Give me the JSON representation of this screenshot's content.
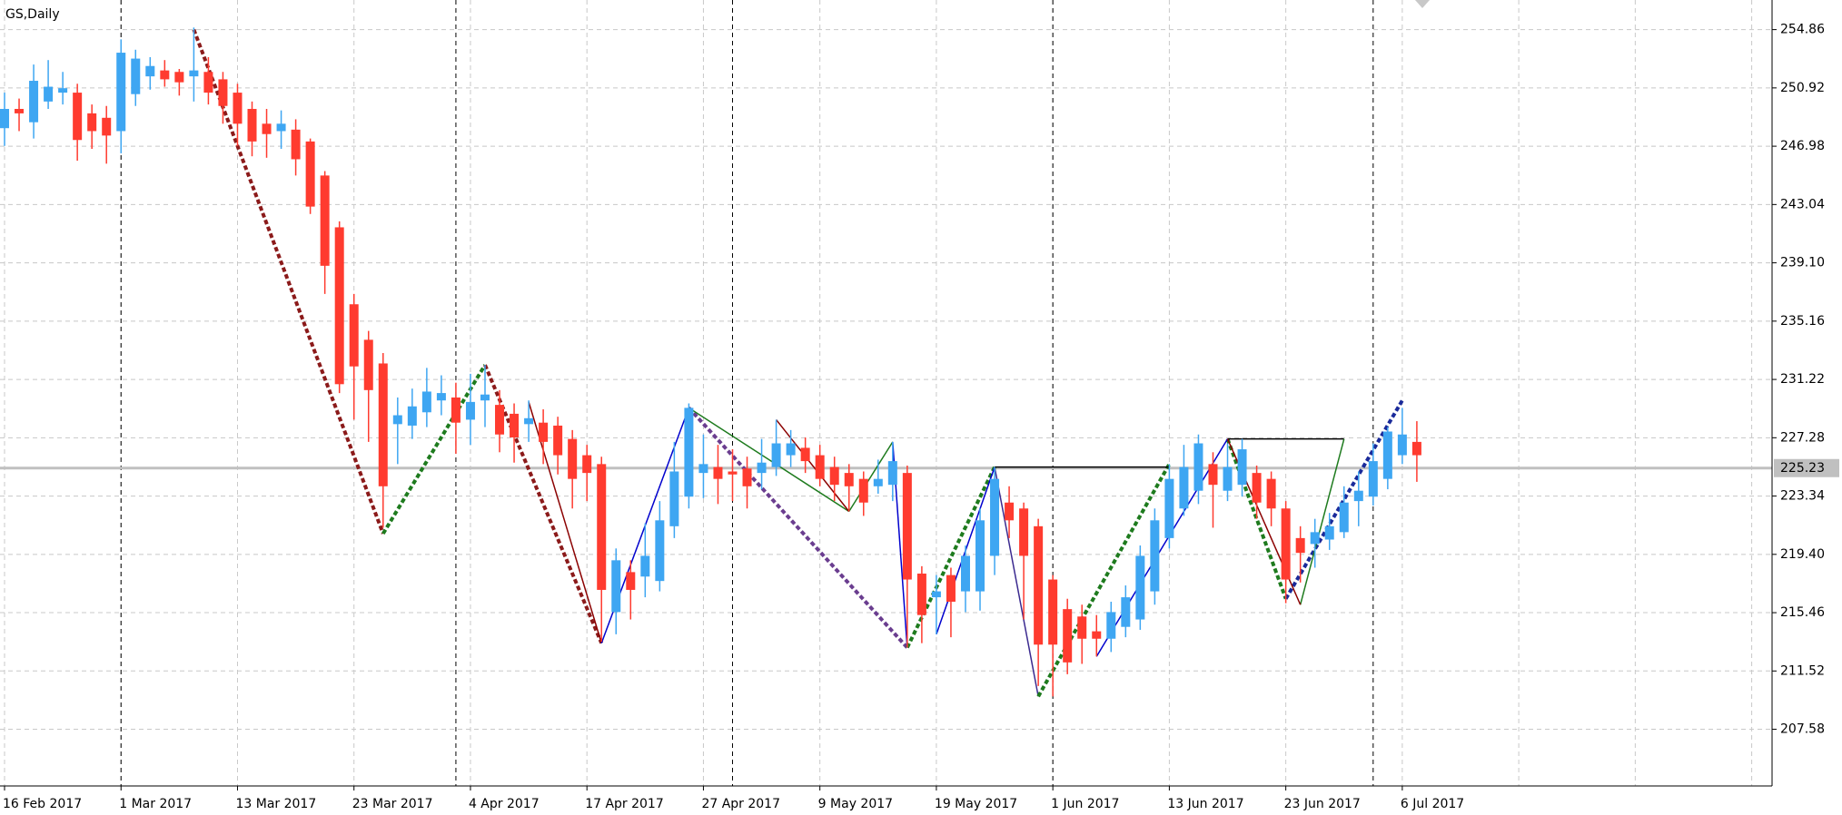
{
  "chart_data": {
    "type": "candlestick",
    "title": "GS,Daily",
    "categories": [
      "16 Feb 2017",
      null,
      null,
      null,
      null,
      null,
      null,
      null,
      "1 Mar 2017",
      null,
      null,
      null,
      null,
      null,
      null,
      null,
      "13 Mar 2017",
      null,
      null,
      null,
      null,
      null,
      null,
      null,
      "23 Mar 2017",
      null,
      null,
      null,
      null,
      null,
      null,
      null,
      "4 Apr 2017",
      null,
      null,
      null,
      null,
      null,
      null,
      null,
      "17 Apr 2017",
      null,
      null,
      null,
      null,
      null,
      null,
      null,
      "27 Apr 2017",
      null,
      null,
      null,
      null,
      null,
      null,
      null,
      "9 May 2017",
      null,
      null,
      null,
      null,
      null,
      null,
      null,
      "19 May 2017",
      null,
      null,
      null,
      null,
      null,
      null,
      null,
      "1 Jun 2017",
      null,
      null,
      null,
      null,
      null,
      null,
      null,
      "13 Jun 2017",
      null,
      null,
      null,
      null,
      null,
      null,
      null,
      "23 Jun 2017",
      null,
      null,
      null,
      null,
      null,
      null,
      null,
      "6 Jul 2017",
      null
    ],
    "open": [
      248.2,
      249.5,
      248.6,
      250.0,
      250.6,
      250.6,
      249.2,
      248.9,
      248.0,
      250.5,
      251.7,
      252.1,
      252.0,
      251.7,
      252.0,
      251.5,
      250.6,
      249.5,
      248.5,
      248.0,
      248.1,
      247.3,
      245.0,
      241.5,
      236.3,
      233.9,
      232.3,
      228.2,
      228.1,
      229.0,
      229.8,
      230.0,
      228.5,
      229.8,
      229.5,
      228.9,
      228.2,
      228.3,
      228.1,
      227.2,
      226.1,
      225.5,
      215.5,
      218.2,
      217.9,
      217.6,
      221.3,
      223.3,
      224.9,
      225.3,
      225.0,
      225.2,
      224.9,
      225.3,
      226.1,
      226.6,
      226.1,
      225.3,
      224.9,
      224.5,
      224.0,
      224.1,
      224.9,
      218.1,
      216.5,
      218.0,
      216.9,
      216.9,
      219.3,
      222.9,
      222.5,
      221.3,
      217.7,
      215.7,
      215.2,
      214.2,
      213.7,
      214.5,
      215.0,
      216.9,
      220.5,
      222.5,
      223.7,
      225.5,
      223.7,
      224.1,
      224.9,
      224.5,
      222.5,
      220.5,
      220.1,
      220.4,
      220.9,
      223.0,
      223.3,
      224.5,
      226.1,
      227.0
    ],
    "high": [
      250.6,
      250.2,
      252.5,
      252.8,
      252.0,
      251.2,
      249.8,
      249.7,
      254.2,
      253.5,
      253.0,
      252.8,
      252.2,
      255.0,
      253.0,
      252.0,
      251.2,
      250.0,
      249.5,
      249.4,
      248.8,
      247.5,
      245.3,
      241.9,
      237.0,
      234.5,
      233.0,
      230.0,
      230.6,
      232.0,
      231.5,
      231.0,
      231.6,
      232.2,
      230.5,
      229.6,
      229.8,
      229.2,
      228.7,
      227.8,
      226.8,
      226.0,
      219.8,
      219.0,
      221.5,
      223.0,
      227.0,
      229.6,
      227.5,
      226.8,
      226.5,
      226.0,
      227.2,
      228.5,
      227.8,
      227.3,
      226.8,
      226.0,
      225.5,
      225.0,
      225.8,
      227.0,
      225.4,
      218.6,
      218.0,
      218.5,
      220.0,
      222.5,
      225.3,
      224.0,
      222.9,
      221.8,
      218.0,
      216.4,
      216.0,
      215.3,
      216.2,
      217.3,
      220.0,
      222.5,
      225.5,
      226.8,
      227.5,
      226.3,
      226.9,
      227.2,
      225.4,
      225.0,
      223.0,
      221.3,
      221.8,
      222.2,
      224.0,
      225.0,
      226.9,
      228.0,
      229.3,
      228.4
    ],
    "low": [
      247.0,
      248.0,
      247.5,
      249.5,
      249.8,
      246.0,
      246.8,
      245.8,
      246.5,
      249.7,
      250.8,
      251.0,
      250.4,
      250.0,
      249.8,
      248.5,
      247.0,
      246.3,
      246.2,
      246.8,
      245.0,
      242.4,
      237.0,
      230.3,
      228.5,
      227.0,
      221.2,
      225.5,
      227.2,
      228.0,
      228.8,
      226.2,
      226.8,
      228.0,
      226.3,
      225.6,
      227.0,
      225.5,
      224.8,
      222.5,
      223.0,
      213.5,
      214.0,
      215.0,
      216.5,
      216.9,
      220.5,
      222.5,
      223.2,
      222.8,
      223.0,
      222.5,
      223.8,
      224.7,
      225.3,
      224.9,
      224.0,
      223.0,
      222.3,
      222.0,
      223.5,
      223.0,
      213.1,
      213.4,
      214.0,
      213.8,
      215.5,
      215.6,
      218.0,
      220.5,
      215.0,
      210.5,
      209.8,
      211.3,
      212.0,
      212.5,
      212.8,
      213.8,
      214.3,
      216.0,
      219.8,
      222.0,
      222.8,
      221.2,
      223.0,
      223.3,
      221.8,
      221.3,
      216.1,
      217.5,
      218.5,
      219.7,
      220.5,
      221.3,
      222.7,
      223.8,
      225.5,
      224.3
    ],
    "close": [
      249.5,
      249.2,
      251.4,
      251.0,
      250.9,
      247.4,
      248.0,
      247.7,
      253.3,
      252.9,
      252.4,
      251.5,
      251.3,
      252.1,
      250.6,
      249.7,
      248.5,
      247.3,
      247.8,
      248.5,
      246.1,
      242.9,
      238.9,
      230.9,
      232.1,
      230.5,
      224.0,
      228.8,
      229.4,
      230.4,
      230.3,
      228.3,
      229.7,
      230.2,
      227.5,
      227.3,
      228.6,
      227.0,
      226.1,
      224.5,
      224.9,
      217.0,
      219.0,
      217.0,
      219.3,
      221.7,
      225.0,
      229.3,
      225.5,
      224.5,
      224.8,
      224.0,
      225.6,
      226.9,
      226.9,
      225.7,
      224.5,
      224.1,
      224.0,
      222.9,
      224.5,
      225.7,
      217.7,
      215.3,
      216.9,
      216.2,
      219.3,
      221.7,
      224.5,
      221.7,
      219.3,
      213.3,
      213.3,
      212.1,
      213.7,
      213.7,
      215.5,
      216.5,
      219.3,
      221.7,
      224.5,
      225.3,
      226.9,
      224.1,
      225.3,
      226.5,
      222.9,
      222.5,
      217.7,
      219.5,
      220.9,
      221.3,
      222.9,
      223.7,
      225.7,
      227.7,
      227.5,
      226.1
    ],
    "up_color": "#3ea6f2",
    "down_color": "#ff3b2f",
    "ylim": [
      203.75,
      256.86
    ],
    "yticks": [
      254.86,
      250.92,
      246.98,
      243.04,
      {
        "value": 239.1,
        "label": "239.10"
      },
      235.16,
      231.22,
      227.28,
      223.34,
      {
        "value": 219.4,
        "label": "219.40"
      },
      215.46,
      211.52,
      207.58
    ],
    "grid": true,
    "current_price": 225.23,
    "separators": [
      8,
      31,
      50,
      72,
      94
    ],
    "overlays": [
      {
        "color": "#8b1a1a",
        "dashed": true,
        "x": [
          13,
          26
        ],
        "values": [
          254.86,
          220.8
        ]
      },
      {
        "color": "#1e7b1e",
        "dashed": true,
        "x": [
          26,
          33
        ],
        "values": [
          220.8,
          232.2
        ]
      },
      {
        "color": "#8b1a1a",
        "dashed": true,
        "x": [
          33,
          41
        ],
        "values": [
          232.2,
          213.4
        ]
      },
      {
        "color": "#6a3d8f",
        "dashed": true,
        "x": [
          47,
          62
        ],
        "values": [
          229.3,
          213.1
        ]
      },
      {
        "color": "#1e7b1e",
        "dashed": true,
        "x": [
          62,
          68
        ],
        "values": [
          213.1,
          225.3
        ]
      },
      {
        "color": "#3b2a8f",
        "dashed": false,
        "x": [
          68,
          71
        ],
        "values": [
          225.3,
          209.8
        ]
      },
      {
        "color": "#1e7b1e",
        "dashed": true,
        "x": [
          71,
          80
        ],
        "values": [
          209.8,
          225.5
        ]
      },
      {
        "color": "#1e7b1e",
        "dashed": true,
        "x": [
          84,
          88
        ],
        "values": [
          227.2,
          216.4
        ]
      },
      {
        "color": "#1a2a9a",
        "dashed": true,
        "x": [
          88,
          96
        ],
        "values": [
          216.4,
          229.8
        ]
      },
      {
        "color": "#8b0000",
        "dashed": false,
        "x": [
          36,
          41
        ],
        "values": [
          229.7,
          213.4
        ]
      },
      {
        "color": "#0000cd",
        "dashed": false,
        "x": [
          41,
          47
        ],
        "values": [
          213.4,
          229.3
        ]
      },
      {
        "color": "#1e7b1e",
        "dashed": false,
        "x": [
          47,
          58
        ],
        "values": [
          229.3,
          222.3
        ]
      },
      {
        "color": "#8b0000",
        "dashed": false,
        "x": [
          53,
          58
        ],
        "values": [
          228.5,
          222.3
        ]
      },
      {
        "color": "#1e7b1e",
        "dashed": false,
        "x": [
          58,
          61
        ],
        "values": [
          222.3,
          227.0
        ]
      },
      {
        "color": "#0000cd",
        "dashed": false,
        "x": [
          61,
          62
        ],
        "values": [
          227.0,
          213.1
        ]
      },
      {
        "color": "#0000cd",
        "dashed": false,
        "x": [
          64,
          68
        ],
        "values": [
          214.0,
          225.3
        ]
      },
      {
        "color": "#000000",
        "dashed": false,
        "x": [
          68,
          80
        ],
        "values": [
          225.3,
          225.3
        ]
      },
      {
        "color": "#0000cd",
        "dashed": false,
        "x": [
          75,
          84
        ],
        "values": [
          212.5,
          227.2
        ]
      },
      {
        "color": "#000000",
        "dashed": false,
        "x": [
          84,
          92
        ],
        "values": [
          227.2,
          227.2
        ]
      },
      {
        "color": "#1e7b1e",
        "dashed": false,
        "x": [
          89,
          92
        ],
        "values": [
          216.0,
          227.2
        ]
      },
      {
        "color": "#8b0000",
        "dashed": false,
        "x": [
          84,
          89
        ],
        "values": [
          227.2,
          216.0
        ]
      }
    ]
  }
}
